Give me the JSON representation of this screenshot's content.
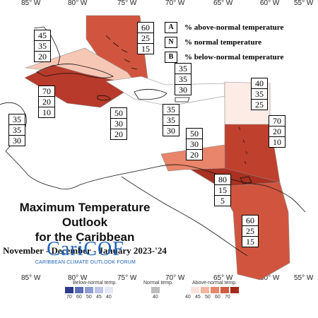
{
  "map": {
    "longitude_labels": [
      "85° W",
      "80° W",
      "75° W",
      "70° W",
      "65° W",
      "60° W",
      "55° W"
    ],
    "boxes": [
      {
        "id": "bahamas",
        "values": [
          "60",
          "25",
          "15"
        ]
      },
      {
        "id": "cuba-west",
        "values": [
          "45",
          "35",
          "20"
        ]
      },
      {
        "id": "hispaniola-north",
        "values": [
          "35",
          "35",
          "30"
        ]
      },
      {
        "id": "lesser-antilles-north",
        "values": [
          "40",
          "35",
          "25"
        ]
      },
      {
        "id": "central-america",
        "values": [
          "70",
          "20",
          "10"
        ]
      },
      {
        "id": "yucatan",
        "values": [
          "35",
          "35",
          "30"
        ]
      },
      {
        "id": "caribbean-west",
        "values": [
          "50",
          "30",
          "20"
        ]
      },
      {
        "id": "caribbean-central",
        "values": [
          "35",
          "35",
          "30"
        ]
      },
      {
        "id": "antilles-east",
        "values": [
          "70",
          "20",
          "10"
        ]
      },
      {
        "id": "caribbean-south",
        "values": [
          "50",
          "30",
          "20"
        ]
      },
      {
        "id": "trinidad",
        "values": [
          "80",
          "15",
          "5"
        ]
      },
      {
        "id": "guianas",
        "values": [
          "60",
          "25",
          "15"
        ]
      }
    ]
  },
  "legend": {
    "items": [
      {
        "key": "A",
        "label": "% above-normal temperature"
      },
      {
        "key": "N",
        "label": "% normal temperature"
      },
      {
        "key": "B",
        "label": "% below-normal temperature"
      }
    ]
  },
  "title": {
    "line1": "Maximum Temperature Outlook",
    "line2": "for the Caribbean",
    "period": "November - December - January 2023-'24"
  },
  "logo": {
    "name": "CariCOF",
    "tagline": "CARIBBEAN CLIMATE OUTLOOK FORUM"
  },
  "colorbar": {
    "below_title": "Below-normal temp.",
    "normal_title": "Normal temp.",
    "above_title": "Above-normal temp.",
    "below_ticks": [
      "70",
      "60",
      "50",
      "45",
      "40"
    ],
    "normal_ticks": [
      "40"
    ],
    "above_ticks": [
      "40",
      "45",
      "50",
      "60",
      "70"
    ],
    "colors": {
      "below": [
        "#2e3a8c",
        "#5c6cb8",
        "#8f9bd1",
        "#bcc3e6",
        "#e3e6f5"
      ],
      "normal": "#bdbdbd",
      "above": [
        "#fbe4dc",
        "#f5b6a0",
        "#e9856a",
        "#d15a40",
        "#a5281c"
      ]
    }
  }
}
